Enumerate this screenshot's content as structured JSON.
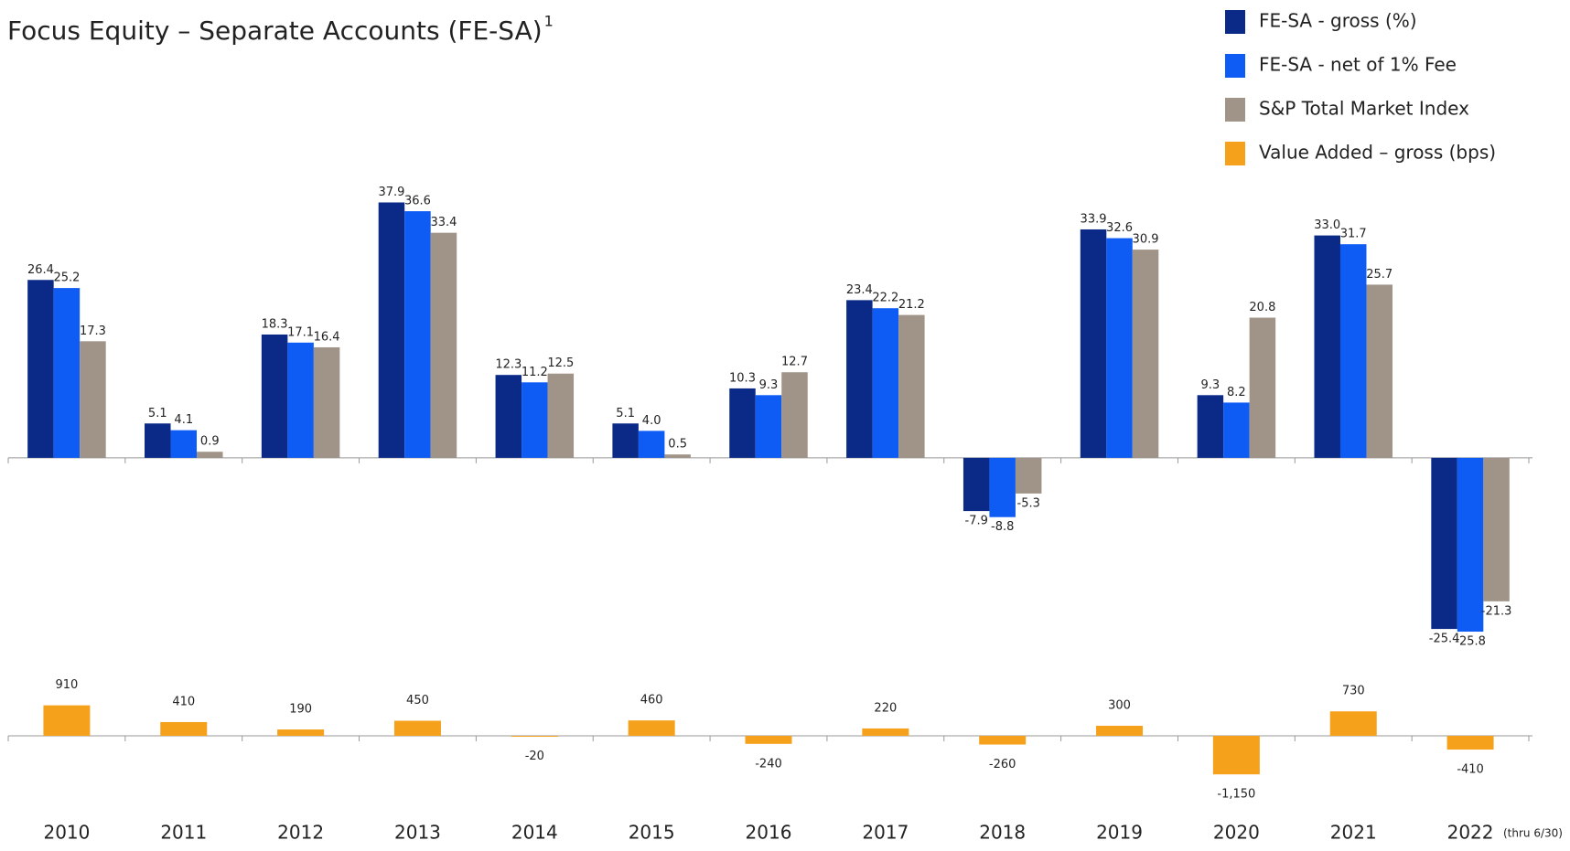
{
  "chart_data": [
    {
      "type": "bar",
      "title": "Focus Equity – Separate Accounts (FE-SA)",
      "title_marker": "1",
      "ylim": [
        -30,
        40
      ],
      "legend": "top-right",
      "series": [
        {
          "name": "FE-SA - gross (%)",
          "color": "#0b2a87",
          "values": [
            26.4,
            5.1,
            18.3,
            37.9,
            12.3,
            5.1,
            10.3,
            23.4,
            -7.9,
            33.9,
            9.3,
            33.0,
            -25.4
          ],
          "value_labels": [
            "26.4",
            "5.1",
            "18.3",
            "37.9",
            "12.3",
            "5.1",
            "10.3",
            "23.4",
            "-7.9",
            "33.9",
            "9.3",
            "33.0",
            "-25.4"
          ]
        },
        {
          "name": "FE-SA - net of 1% Fee",
          "color": "#0f5cf5",
          "values": [
            25.2,
            4.1,
            17.1,
            36.6,
            11.2,
            4.0,
            9.3,
            22.2,
            -8.8,
            32.6,
            8.2,
            31.7,
            -25.8
          ],
          "value_labels": [
            "25.2",
            "4.1",
            "17.1",
            "36.6",
            "11.2",
            "4.0",
            "9.3",
            "22.2",
            "-8.8",
            "32.6",
            "8.2",
            "31.7",
            "-25.8"
          ]
        },
        {
          "name": "S&P Total Market Index",
          "color": "#a09488",
          "values": [
            17.3,
            0.9,
            16.4,
            33.4,
            12.5,
            0.5,
            12.7,
            21.2,
            -5.3,
            30.9,
            20.8,
            25.7,
            -21.3
          ],
          "value_labels": [
            "17.3",
            "0.9",
            "16.4",
            "33.4",
            "12.5",
            "0.5",
            "12.7",
            "21.2",
            "-5.3",
            "30.9",
            "20.8",
            "25.7",
            "-21.3"
          ]
        }
      ]
    },
    {
      "type": "bar",
      "ylim": [
        -1200,
        1200
      ],
      "categories": [
        "2010",
        "2011",
        "2012",
        "2013",
        "2014",
        "2015",
        "2016",
        "2017",
        "2018",
        "2019",
        "2020",
        "2021",
        "2022"
      ],
      "annotation": "(thru 6/30)",
      "series": [
        {
          "name": "Value Added – gross (bps)",
          "color": "#f5a11c",
          "values": [
            910,
            410,
            190,
            450,
            -20,
            460,
            -240,
            220,
            -260,
            300,
            -1150,
            730,
            -410
          ],
          "value_labels": [
            "910",
            "410",
            "190",
            "450",
            "-20",
            "460",
            "-240",
            "220",
            "-260",
            "300",
            "-1,150",
            "730",
            "-410"
          ]
        }
      ]
    }
  ]
}
